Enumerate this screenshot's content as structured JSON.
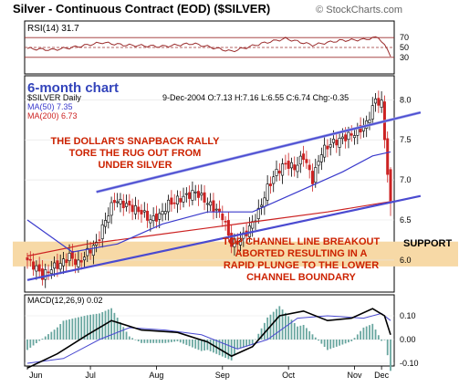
{
  "header": {
    "title": "Silver - Continuous Contract (EOD) ($SILVER)",
    "brand": "© StockCharts.com"
  },
  "rsi_panel": {
    "label": "RSI(14) 31.7",
    "ticks": [
      "70",
      "50",
      "30"
    ]
  },
  "price_panel": {
    "label_6month": "6-month chart",
    "symbol_label": "$SILVER Daily",
    "quote_line": "9-Dec-2004 O:7.13 H:7.16 L:6.55 C:6.74 Chg:-0.35",
    "ma50_label": "MA(50) 7.35",
    "ma200_label": "MA(200) 6.73",
    "annotation_top": [
      "THE DOLLAR'S SNAPBACK RALLY",
      "TORE THE RUG OUT FROM",
      "UNDER SILVER"
    ],
    "annotation_bottom": [
      "TOP CHANNEL LINE BREAKOUT",
      "ABORTED RESULTING IN A",
      "RAPID PLUNGE TO THE LOWER",
      "CHANNEL BOUNDARY"
    ],
    "support_label": "SUPPORT",
    "y_ticks": [
      "8.0",
      "7.5",
      "7.0",
      "6.5",
      "6.0"
    ]
  },
  "macd_panel": {
    "label": "MACD(12,26,9) 0.02",
    "y_ticks": [
      "0.10",
      "0.00",
      "-0.10"
    ]
  },
  "x_axis": {
    "months": [
      "Jun",
      "Jul",
      "Aug",
      "Sep",
      "Oct",
      "Nov",
      "Dec"
    ]
  },
  "colors": {
    "channel": "#4a4ad0",
    "ma50": "#3a3acc",
    "ma200": "#cc2222",
    "annotation": "#cc2200",
    "support_band": "#f7d9a6",
    "label_blue": "#3344bb",
    "rsi_line": "#9b2c2c"
  },
  "chart_data": {
    "type": "candlestick",
    "title": "Silver - Continuous Contract (EOD) ($SILVER)",
    "ylim": [
      5.6,
      8.3
    ],
    "x_labels": [
      "Jun",
      "Jul",
      "Aug",
      "Sep",
      "Oct",
      "Nov",
      "Dec"
    ],
    "last_bar": {
      "date": "9-Dec-2004",
      "open": 7.13,
      "high": 7.16,
      "low": 6.55,
      "close": 6.74,
      "change": -0.35
    },
    "price_series": [
      {
        "t": 0,
        "c": 6.0
      },
      {
        "t": 3,
        "c": 5.9
      },
      {
        "t": 5,
        "c": 5.8
      },
      {
        "t": 8,
        "c": 5.9
      },
      {
        "t": 11,
        "c": 5.95
      },
      {
        "t": 14,
        "c": 6.05
      },
      {
        "t": 17,
        "c": 5.95
      },
      {
        "t": 20,
        "c": 6.1
      },
      {
        "t": 23,
        "c": 6.2
      },
      {
        "t": 26,
        "c": 6.5
      },
      {
        "t": 29,
        "c": 6.75
      },
      {
        "t": 32,
        "c": 6.7
      },
      {
        "t": 35,
        "c": 6.65
      },
      {
        "t": 38,
        "c": 6.6
      },
      {
        "t": 41,
        "c": 6.5
      },
      {
        "t": 44,
        "c": 6.55
      },
      {
        "t": 47,
        "c": 6.7
      },
      {
        "t": 50,
        "c": 6.75
      },
      {
        "t": 53,
        "c": 6.8
      },
      {
        "t": 56,
        "c": 6.85
      },
      {
        "t": 59,
        "c": 6.75
      },
      {
        "t": 62,
        "c": 6.65
      },
      {
        "t": 65,
        "c": 6.55
      },
      {
        "t": 68,
        "c": 6.2
      },
      {
        "t": 71,
        "c": 6.25
      },
      {
        "t": 74,
        "c": 6.4
      },
      {
        "t": 77,
        "c": 6.6
      },
      {
        "t": 80,
        "c": 6.9
      },
      {
        "t": 83,
        "c": 7.1
      },
      {
        "t": 86,
        "c": 7.2
      },
      {
        "t": 89,
        "c": 7.15
      },
      {
        "t": 92,
        "c": 7.3
      },
      {
        "t": 95,
        "c": 7.0
      },
      {
        "t": 98,
        "c": 7.35
      },
      {
        "t": 101,
        "c": 7.45
      },
      {
        "t": 104,
        "c": 7.5
      },
      {
        "t": 107,
        "c": 7.55
      },
      {
        "t": 110,
        "c": 7.6
      },
      {
        "t": 113,
        "c": 7.7
      },
      {
        "t": 116,
        "c": 8.0
      },
      {
        "t": 118,
        "c": 7.95
      },
      {
        "t": 120,
        "c": 7.09
      },
      {
        "t": 121,
        "c": 6.74
      }
    ],
    "ma50": [
      {
        "t": 0,
        "v": 6.5
      },
      {
        "t": 15,
        "v": 6.1
      },
      {
        "t": 30,
        "v": 6.2
      },
      {
        "t": 45,
        "v": 6.45
      },
      {
        "t": 60,
        "v": 6.6
      },
      {
        "t": 75,
        "v": 6.6
      },
      {
        "t": 90,
        "v": 6.85
      },
      {
        "t": 105,
        "v": 7.1
      },
      {
        "t": 115,
        "v": 7.3
      },
      {
        "t": 121,
        "v": 7.35
      }
    ],
    "ma200": [
      {
        "t": 0,
        "v": 6.05
      },
      {
        "t": 20,
        "v": 6.2
      },
      {
        "t": 40,
        "v": 6.3
      },
      {
        "t": 60,
        "v": 6.4
      },
      {
        "t": 80,
        "v": 6.5
      },
      {
        "t": 100,
        "v": 6.6
      },
      {
        "t": 121,
        "v": 6.73
      }
    ],
    "channel_upper": [
      {
        "t": 23,
        "v": 6.85
      },
      {
        "t": 121,
        "v": 7.75
      }
    ],
    "channel_lower": [
      {
        "t": 0,
        "v": 5.75
      },
      {
        "t": 121,
        "v": 6.72
      }
    ],
    "support_zone": [
      6.0,
      6.15
    ],
    "rsi": [
      {
        "t": 0,
        "v": 48
      },
      {
        "t": 8,
        "v": 45
      },
      {
        "t": 15,
        "v": 50
      },
      {
        "t": 25,
        "v": 60
      },
      {
        "t": 32,
        "v": 55
      },
      {
        "t": 45,
        "v": 52
      },
      {
        "t": 55,
        "v": 58
      },
      {
        "t": 68,
        "v": 42
      },
      {
        "t": 78,
        "v": 58
      },
      {
        "t": 86,
        "v": 68
      },
      {
        "t": 95,
        "v": 55
      },
      {
        "t": 104,
        "v": 64
      },
      {
        "t": 112,
        "v": 66
      },
      {
        "t": 117,
        "v": 71
      },
      {
        "t": 120,
        "v": 45
      },
      {
        "t": 121,
        "v": 31.7
      }
    ],
    "macd": [
      {
        "t": 0,
        "v": -0.12
      },
      {
        "t": 10,
        "v": -0.06
      },
      {
        "t": 20,
        "v": 0.02
      },
      {
        "t": 28,
        "v": 0.08
      },
      {
        "t": 38,
        "v": 0.04
      },
      {
        "t": 50,
        "v": 0.03
      },
      {
        "t": 60,
        "v": -0.01
      },
      {
        "t": 68,
        "v": -0.07
      },
      {
        "t": 75,
        "v": -0.03
      },
      {
        "t": 84,
        "v": 0.1
      },
      {
        "t": 92,
        "v": 0.12
      },
      {
        "t": 100,
        "v": 0.08
      },
      {
        "t": 108,
        "v": 0.09
      },
      {
        "t": 115,
        "v": 0.13
      },
      {
        "t": 119,
        "v": 0.1
      },
      {
        "t": 121,
        "v": 0.02
      }
    ],
    "macd_signal": [
      {
        "t": 0,
        "v": -0.1
      },
      {
        "t": 12,
        "v": -0.08
      },
      {
        "t": 24,
        "v": 0.0
      },
      {
        "t": 34,
        "v": 0.05
      },
      {
        "t": 46,
        "v": 0.04
      },
      {
        "t": 58,
        "v": 0.02
      },
      {
        "t": 70,
        "v": -0.04
      },
      {
        "t": 80,
        "v": 0.0
      },
      {
        "t": 90,
        "v": 0.09
      },
      {
        "t": 100,
        "v": 0.1
      },
      {
        "t": 112,
        "v": 0.09
      },
      {
        "t": 118,
        "v": 0.11
      },
      {
        "t": 121,
        "v": 0.08
      }
    ]
  }
}
